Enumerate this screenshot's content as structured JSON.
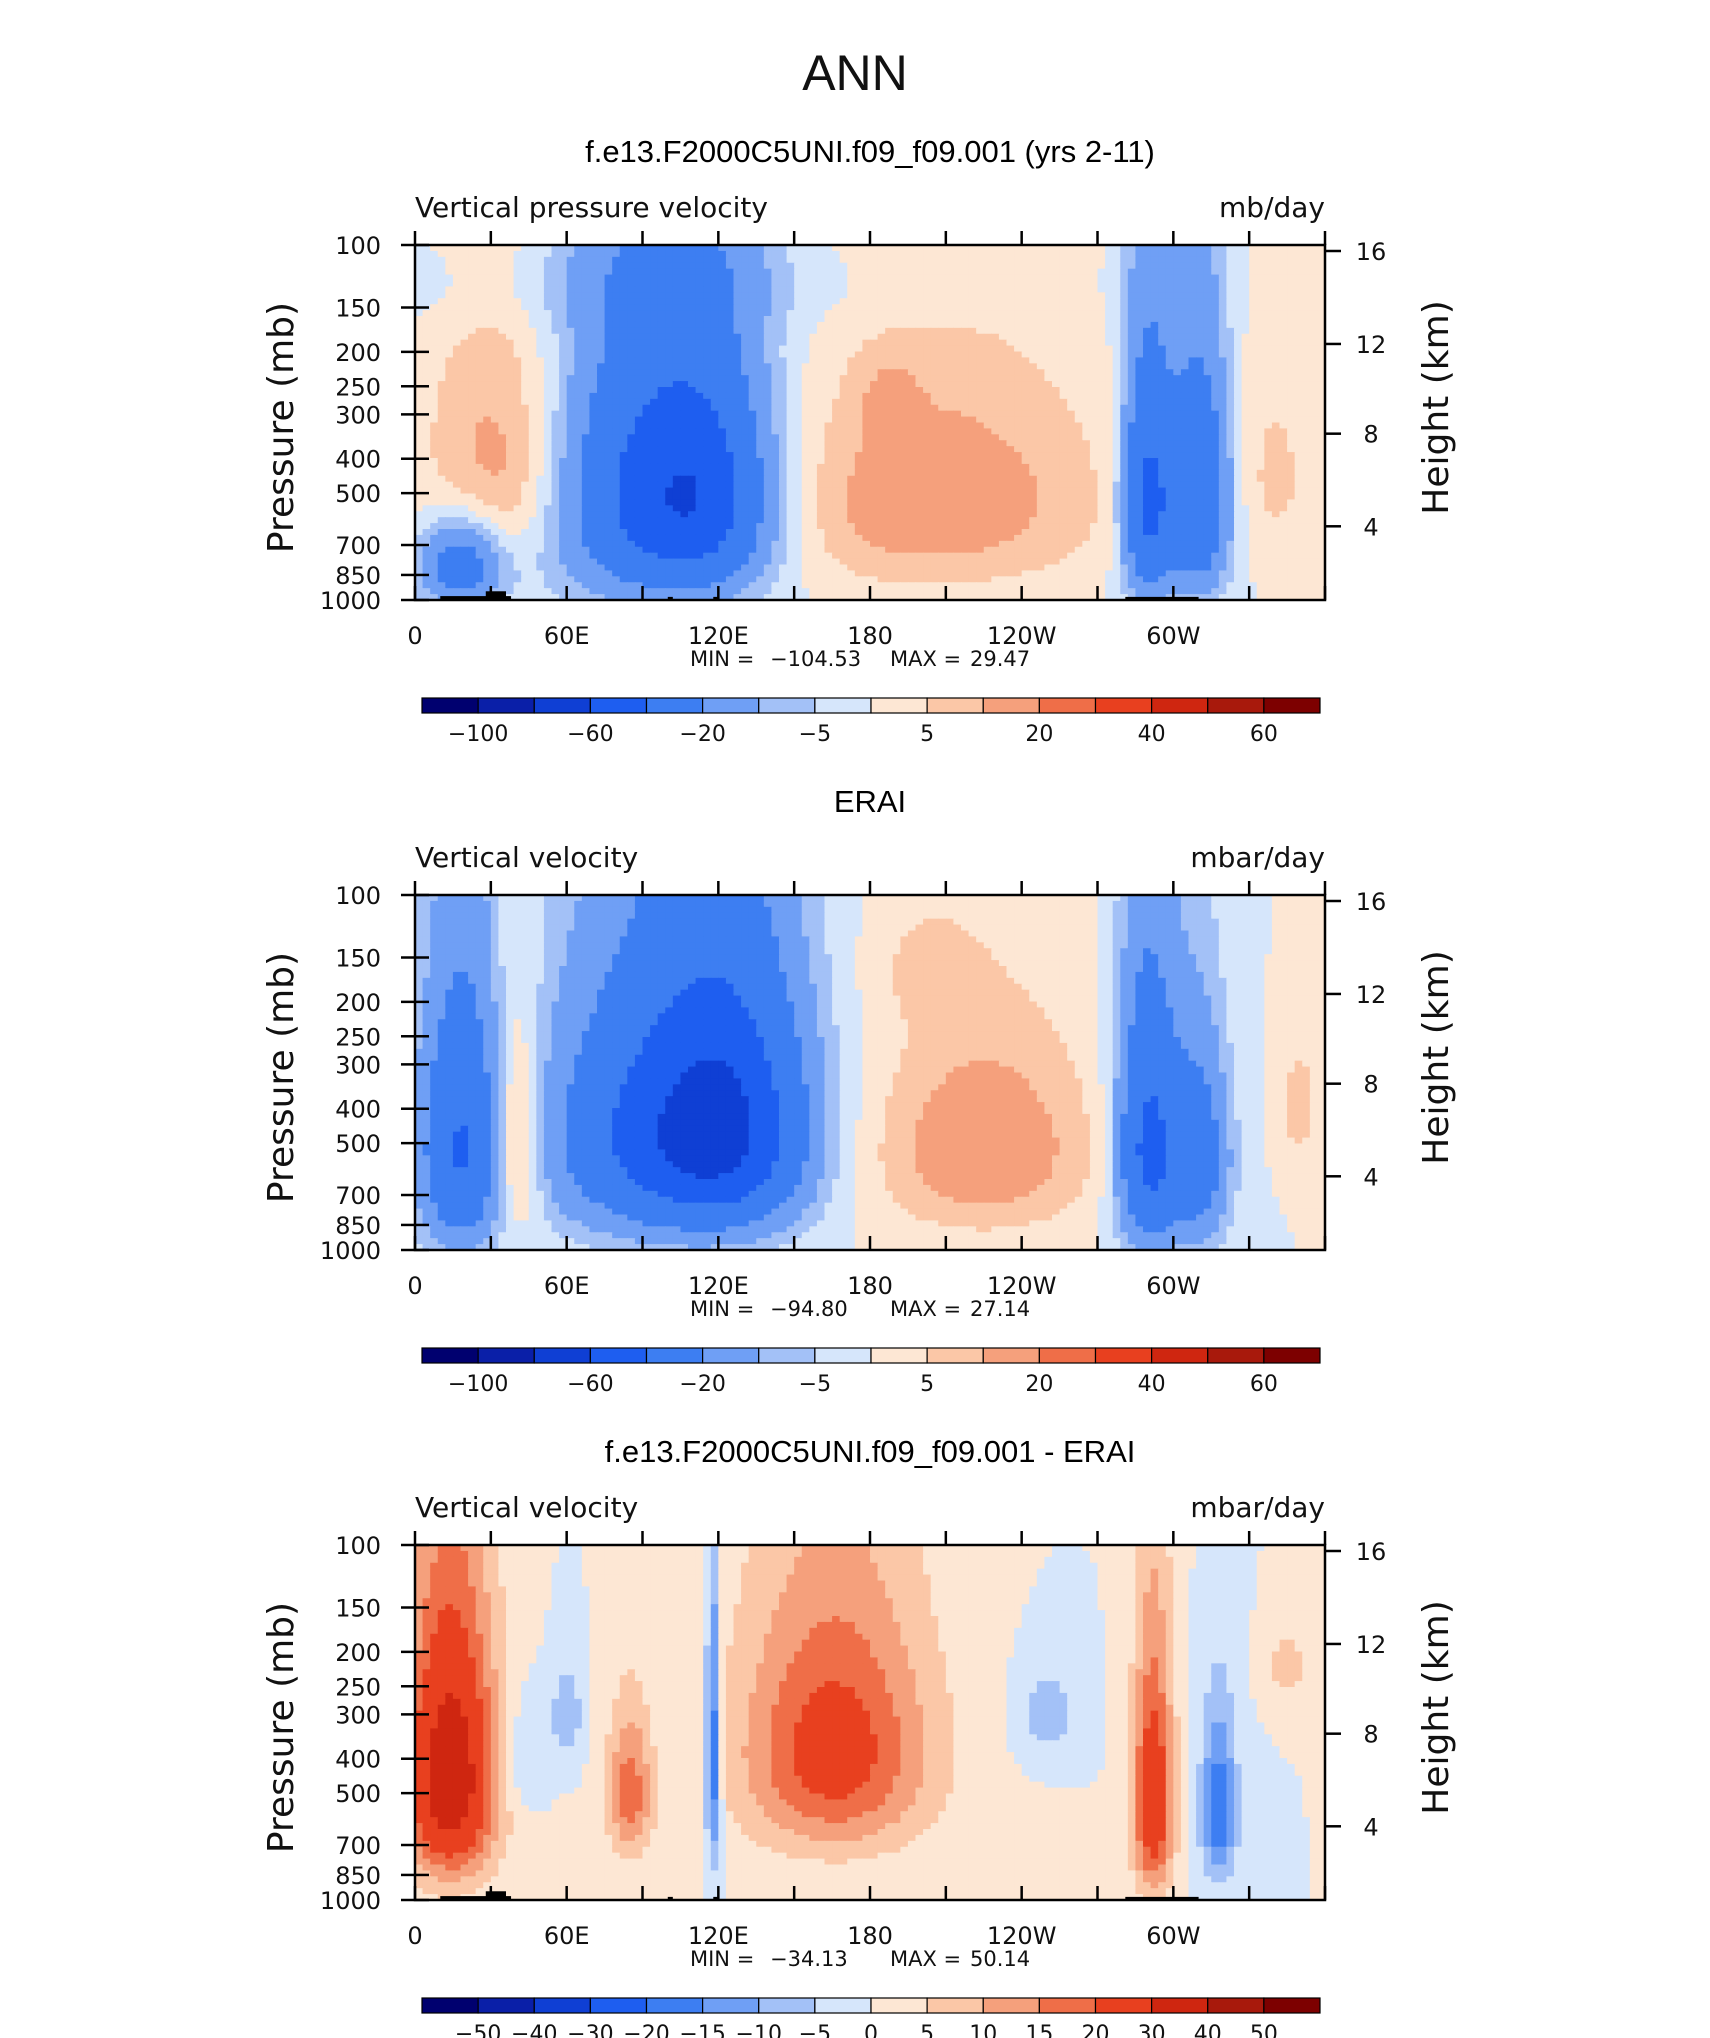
{
  "figure": {
    "title": "ANN"
  },
  "chart_data": [
    {
      "type": "heatmap",
      "panel_title": "f.e13.F2000C5UNI.f09_f09.001 (yrs 2-11)",
      "field_label": "Vertical pressure velocity",
      "units": "mb/day",
      "ylabel": "Pressure (mb)",
      "ylabel_right": "Height (km)",
      "xticks": [
        "0",
        "60E",
        "120E",
        "180",
        "120W",
        "60W"
      ],
      "yticks": [
        "100",
        "150",
        "200",
        "250",
        "300",
        "400",
        "500",
        "700",
        "850",
        "1000"
      ],
      "yticks_right": [
        "16",
        "12",
        "8",
        "4"
      ],
      "ylim": [
        1000,
        100
      ],
      "stats": {
        "min_label": "MIN",
        "min": "−104.53",
        "max_label": "MAX",
        "max": "29.47"
      },
      "colorbar_labels": [
        "−100",
        "−60",
        "−20",
        "−5",
        "5",
        "20",
        "40",
        "60"
      ],
      "blobs": [
        {
          "x": 36,
          "p": 420,
          "rx": 30,
          "rp": 320,
          "v": 15
        },
        {
          "x": 18,
          "p": 800,
          "rx": 16,
          "rp": 220,
          "v": -30
        },
        {
          "x": 95,
          "p": 500,
          "rx": 40,
          "rp": 430,
          "v": -45
        },
        {
          "x": 115,
          "p": 520,
          "rx": 24,
          "rp": 350,
          "v": -25
        },
        {
          "x": 205,
          "p": 520,
          "rx": 65,
          "rp": 360,
          "v": 15
        },
        {
          "x": 188,
          "p": 280,
          "rx": 10,
          "rp": 60,
          "v": 8
        },
        {
          "x": 80,
          "p": 130,
          "rx": 170,
          "rp": 40,
          "v": -4
        },
        {
          "x": 290,
          "p": 530,
          "rx": 10,
          "rp": 400,
          "v": -45
        },
        {
          "x": 310,
          "p": 520,
          "rx": 12,
          "rp": 380,
          "v": -40
        },
        {
          "x": 340,
          "p": 450,
          "rx": 16,
          "rp": 300,
          "v": 6
        }
      ]
    },
    {
      "type": "heatmap",
      "panel_title": "ERAI",
      "field_label": "Vertical velocity",
      "units": "mbar/day",
      "ylabel": "Pressure (mb)",
      "ylabel_right": "Height (km)",
      "xticks": [
        "0",
        "60E",
        "120E",
        "180",
        "120W",
        "60W"
      ],
      "yticks": [
        "100",
        "150",
        "200",
        "250",
        "300",
        "400",
        "500",
        "700",
        "850",
        "1000"
      ],
      "yticks_right": [
        "16",
        "12",
        "8",
        "4"
      ],
      "ylim": [
        1000,
        100
      ],
      "stats": {
        "min_label": "MIN",
        "min": "−94.80",
        "max_label": "MAX",
        "max": "27.14"
      },
      "colorbar_labels": [
        "−100",
        "−60",
        "−20",
        "−5",
        "5",
        "20",
        "40",
        "60"
      ],
      "blobs": [
        {
          "x": 18,
          "p": 520,
          "rx": 16,
          "rp": 420,
          "v": -40
        },
        {
          "x": 40,
          "p": 500,
          "rx": 10,
          "rp": 320,
          "v": 18
        },
        {
          "x": 95,
          "p": 470,
          "rx": 42,
          "rp": 380,
          "v": -42
        },
        {
          "x": 125,
          "p": 450,
          "rx": 30,
          "rp": 360,
          "v": -45
        },
        {
          "x": 225,
          "p": 520,
          "rx": 42,
          "rp": 330,
          "v": 16
        },
        {
          "x": 200,
          "p": 160,
          "rx": 20,
          "rp": 60,
          "v": 4
        },
        {
          "x": 290,
          "p": 520,
          "rx": 12,
          "rp": 420,
          "v": -45
        },
        {
          "x": 310,
          "p": 560,
          "rx": 12,
          "rp": 360,
          "v": -30
        },
        {
          "x": 350,
          "p": 400,
          "rx": 8,
          "rp": 150,
          "v": 8
        }
      ]
    },
    {
      "type": "heatmap",
      "panel_title": "f.e13.F2000C5UNI.f09_f09.001 - ERAI",
      "field_label": "Vertical velocity",
      "units": "mbar/day",
      "ylabel": "Pressure (mb)",
      "ylabel_right": "Height (km)",
      "xticks": [
        "0",
        "60E",
        "120E",
        "180",
        "120W",
        "60W"
      ],
      "yticks": [
        "100",
        "150",
        "200",
        "250",
        "300",
        "400",
        "500",
        "700",
        "850",
        "1000"
      ],
      "yticks_right": [
        "16",
        "12",
        "8",
        "4"
      ],
      "ylim": [
        1000,
        100
      ],
      "stats": {
        "min_label": "MIN",
        "min": "−34.13",
        "max_label": "MAX",
        "max": "50.14"
      },
      "colorbar_labels": [
        "−50",
        "−40",
        "−30",
        "−20",
        "−15",
        "−10",
        "−5",
        "0",
        "5",
        "10",
        "15",
        "20",
        "30",
        "40",
        "50"
      ],
      "blobs": [
        {
          "x": 14,
          "p": 450,
          "rx": 18,
          "rp": 380,
          "v": 38
        },
        {
          "x": 42,
          "p": 400,
          "rx": 8,
          "rp": 150,
          "v": -6
        },
        {
          "x": 60,
          "p": 300,
          "rx": 6,
          "rp": 90,
          "v": -10
        },
        {
          "x": 85,
          "p": 500,
          "rx": 9,
          "rp": 240,
          "v": 18
        },
        {
          "x": 118,
          "p": 400,
          "rx": 3,
          "rp": 360,
          "v": -22
        },
        {
          "x": 166,
          "p": 380,
          "rx": 38,
          "rp": 320,
          "v": 24
        },
        {
          "x": 250,
          "p": 300,
          "rx": 12,
          "rp": 90,
          "v": -8
        },
        {
          "x": 292,
          "p": 520,
          "rx": 8,
          "rp": 400,
          "v": 28
        },
        {
          "x": 318,
          "p": 560,
          "rx": 7,
          "rp": 300,
          "v": -20
        },
        {
          "x": 345,
          "p": 220,
          "rx": 8,
          "rp": 50,
          "v": 8
        }
      ]
    }
  ]
}
